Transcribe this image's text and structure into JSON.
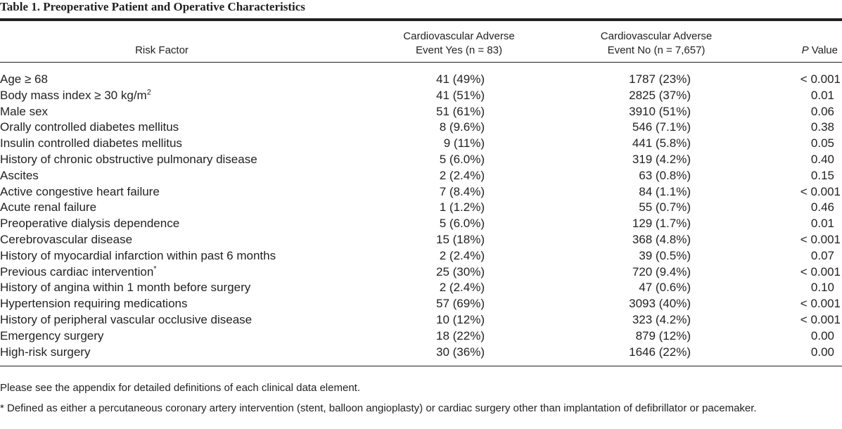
{
  "caption": "Table 1. Preoperative Patient and Operative Characteristics",
  "header": {
    "risk_factor": "Risk Factor",
    "yes_line1": "Cardiovascular Adverse",
    "yes_line2": "Event Yes (n = 83)",
    "no_line1": "Cardiovascular Adverse",
    "no_line2": "Event No (n = 7,657)",
    "p_italic": "P",
    "p_rest": " Value"
  },
  "rows": [
    {
      "factor": "Age ≥ 68",
      "yes": "41 (49%)",
      "no": "1787 (23%)",
      "p": "< 0.001"
    },
    {
      "factor": "Body mass index ≥ 30 kg/m",
      "sup": "2",
      "yes": "41 (51%)",
      "no": "2825 (37%)",
      "p": "0.01"
    },
    {
      "factor": "Male sex",
      "yes": "51 (61%)",
      "no": "3910 (51%)",
      "p": "0.06"
    },
    {
      "factor": "Orally controlled diabetes mellitus",
      "yes": "8 (9.6%)",
      "no": "546 (7.1%)",
      "p": "0.38"
    },
    {
      "factor": "Insulin controlled diabetes mellitus",
      "yes": "9 (11%)",
      "no": "441 (5.8%)",
      "p": "0.05"
    },
    {
      "factor": "History of chronic obstructive pulmonary disease",
      "yes": "5 (6.0%)",
      "no": "319 (4.2%)",
      "p": "0.40"
    },
    {
      "factor": "Ascites",
      "yes": "2 (2.4%)",
      "no": "63 (0.8%)",
      "p": "0.15"
    },
    {
      "factor": "Active congestive heart failure",
      "yes": "7 (8.4%)",
      "no": "84 (1.1%)",
      "p": "< 0.001"
    },
    {
      "factor": "Acute renal failure",
      "yes": "1 (1.2%)",
      "no": "55 (0.7%)",
      "p": "0.46"
    },
    {
      "factor": "Preoperative dialysis dependence",
      "yes": "5 (6.0%)",
      "no": "129 (1.7%)",
      "p": "0.01"
    },
    {
      "factor": "Cerebrovascular disease",
      "yes": "15 (18%)",
      "no": "368 (4.8%)",
      "p": "< 0.001"
    },
    {
      "factor": "History of myocardial infarction within past 6 months",
      "yes": "2 (2.4%)",
      "no": "39 (0.5%)",
      "p": "0.07"
    },
    {
      "factor": "Previous cardiac intervention",
      "sup": "*",
      "yes": "25 (30%)",
      "no": "720 (9.4%)",
      "p": "< 0.001"
    },
    {
      "factor": "History of angina within 1 month before surgery",
      "yes": "2 (2.4%)",
      "no": "47 (0.6%)",
      "p": "0.10"
    },
    {
      "factor": "Hypertension requiring medications",
      "yes": "57 (69%)",
      "no": "3093 (40%)",
      "p": "< 0.001"
    },
    {
      "factor": "History of peripheral vascular occlusive disease",
      "yes": "10 (12%)",
      "no": "323 (4.2%)",
      "p": "< 0.001"
    },
    {
      "factor": "Emergency surgery",
      "yes": "18 (22%)",
      "no": "879 (12%)",
      "p": "0.00"
    },
    {
      "factor": "High-risk surgery",
      "yes": "30 (36%)",
      "no": "1646 (22%)",
      "p": "0.00"
    }
  ],
  "notes": {
    "general": "Please see the appendix for detailed definitions of each clinical data element.",
    "footnote": "* Defined as either a percutaneous coronary artery intervention (stent, balloon angioplasty) or cardiac surgery other than implantation of defibrillator or pacemaker."
  }
}
